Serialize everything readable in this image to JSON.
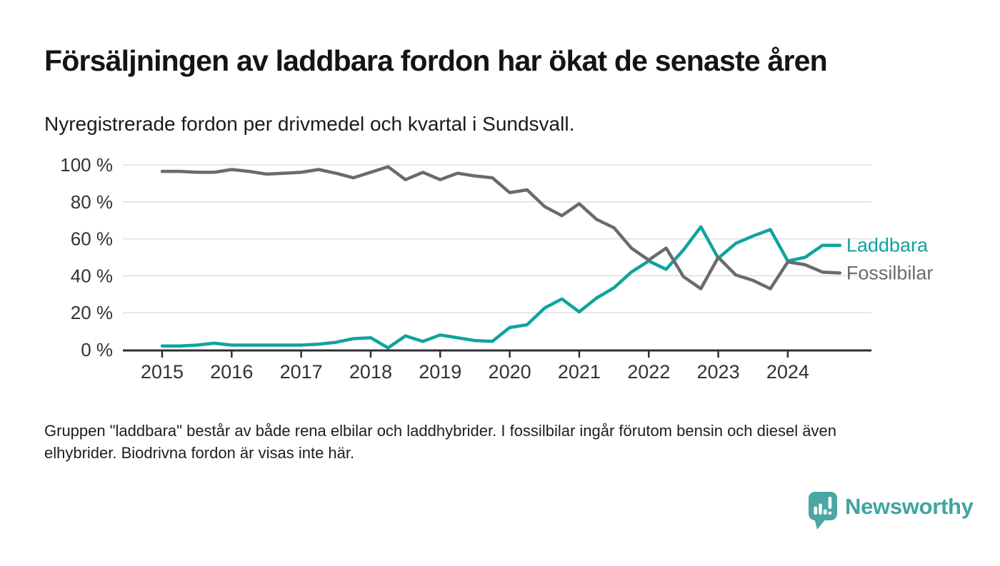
{
  "header": {
    "title": "Försäljningen av laddbara fordon har ökat de senaste åren",
    "subtitle": "Nyregistrerade fordon per drivmedel och kvartal i Sundsvall."
  },
  "chart_data": {
    "type": "line",
    "title": "Försäljningen av laddbara fordon har ökat de senaste åren",
    "subtitle": "Nyregistrerade fordon per drivmedel och kvartal i Sundsvall.",
    "unit": "%",
    "ylim": [
      0,
      100
    ],
    "grid": "horizontal",
    "legend_position": "right-of-line-end",
    "x": [
      "2015 Q1",
      "2015 Q2",
      "2015 Q3",
      "2015 Q4",
      "2016 Q1",
      "2016 Q2",
      "2016 Q3",
      "2016 Q4",
      "2017 Q1",
      "2017 Q2",
      "2017 Q3",
      "2017 Q4",
      "2018 Q1",
      "2018 Q2",
      "2018 Q3",
      "2018 Q4",
      "2019 Q1",
      "2019 Q2",
      "2019 Q3",
      "2019 Q4",
      "2020 Q1",
      "2020 Q2",
      "2020 Q3",
      "2020 Q4",
      "2021 Q1",
      "2021 Q2",
      "2021 Q3",
      "2021 Q4",
      "2022 Q1",
      "2022 Q2",
      "2022 Q3",
      "2022 Q4",
      "2023 Q1",
      "2023 Q2",
      "2023 Q3",
      "2023 Q4",
      "2024 Q1",
      "2024 Q2",
      "2024 Q3",
      "2024 Q4"
    ],
    "x_tick_labels": [
      "2015",
      "2016",
      "2017",
      "2018",
      "2019",
      "2020",
      "2021",
      "2022",
      "2023",
      "2024"
    ],
    "y_ticks": [
      {
        "value": 100,
        "label": "100 %"
      },
      {
        "value": 80,
        "label": "80 %"
      },
      {
        "value": 60,
        "label": "60 %"
      },
      {
        "value": 40,
        "label": "40 %"
      },
      {
        "value": 20,
        "label": "20 %"
      },
      {
        "value": 0,
        "label": "0 %"
      }
    ],
    "series": [
      {
        "name": "Laddbara",
        "color": "#0fa49d",
        "values": [
          2,
          2,
          2.5,
          3.5,
          2.5,
          2.5,
          2.5,
          2.5,
          2.5,
          3,
          4,
          6,
          6.5,
          1,
          7.5,
          4.5,
          8,
          6.5,
          5,
          4.5,
          12,
          13.5,
          22.5,
          27.5,
          20.5,
          28,
          33.5,
          42,
          48,
          43.5,
          54,
          66.5,
          49.5,
          57.5,
          61.5,
          65,
          48,
          50,
          56.5,
          56.5
        ]
      },
      {
        "name": "Fossilbilar",
        "color": "#6b6a70",
        "values": [
          96.5,
          96.5,
          96,
          96,
          97.5,
          96.5,
          95,
          95.5,
          96,
          97.5,
          95.5,
          93,
          96,
          99,
          92,
          96,
          92,
          95.5,
          94,
          93,
          85,
          86.5,
          77.5,
          72.5,
          79,
          70.5,
          66,
          55,
          48.5,
          55,
          39.5,
          33,
          50,
          40.5,
          37.5,
          33,
          47.5,
          46,
          42,
          41.5
        ]
      }
    ],
    "style": {
      "gridline_color": "#dedede",
      "axis_color": "#2f2f33",
      "tick_label_color": "#333333"
    }
  },
  "footnote": {
    "line1": "Gruppen \"laddbara\" består av både rena elbilar och laddhybrider. I fossilbilar ingår förutom bensin och diesel även",
    "line2": "elhybrider. Biodrivna fordon är visas inte här."
  },
  "logo": {
    "text": "Newsworthy",
    "icon": "newsworthy-marker-bar-chart-icon",
    "color": "#3ea5a2"
  }
}
